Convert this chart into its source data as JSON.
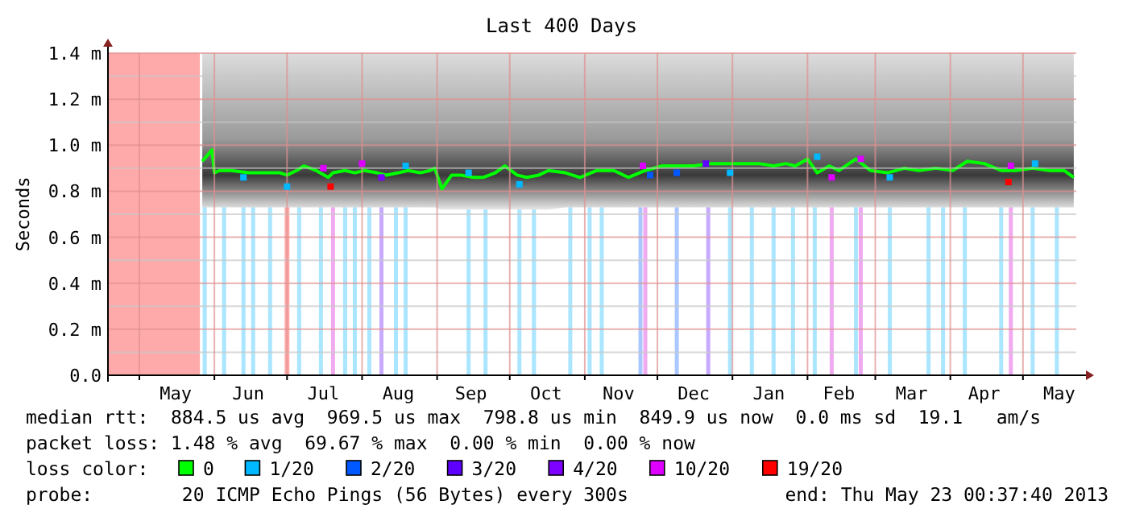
{
  "chart_data": {
    "type": "line",
    "title": "Last 400 Days",
    "ylabel": "Seconds",
    "legend_title": "loss color:",
    "legend": "bottom",
    "grid": true,
    "xlim": [
      "2012-04-18T00:37",
      "2013-05-23T00:37"
    ],
    "xticks": [
      {
        "value": "2012-05-01",
        "label": null
      },
      {
        "value": "2012-05-16",
        "label": "May"
      },
      {
        "value": "2012-06-01",
        "label": null
      },
      {
        "value": "2012-06-15",
        "label": "Jun"
      },
      {
        "value": "2012-07-01",
        "label": null
      },
      {
        "value": "2012-07-16",
        "label": "Jul"
      },
      {
        "value": "2012-08-01",
        "label": null
      },
      {
        "value": "2012-08-16",
        "label": "Aug"
      },
      {
        "value": "2012-09-01",
        "label": null
      },
      {
        "value": "2012-09-15",
        "label": "Sep"
      },
      {
        "value": "2012-10-01",
        "label": null
      },
      {
        "value": "2012-10-16",
        "label": "Oct"
      },
      {
        "value": "2012-11-01",
        "label": null
      },
      {
        "value": "2012-11-15",
        "label": "Nov"
      },
      {
        "value": "2012-12-01",
        "label": null
      },
      {
        "value": "2012-12-16",
        "label": "Dec"
      },
      {
        "value": "2013-01-01",
        "label": null
      },
      {
        "value": "2013-01-16",
        "label": "Jan"
      },
      {
        "value": "2013-02-01",
        "label": null
      },
      {
        "value": "2013-02-14",
        "label": "Feb"
      },
      {
        "value": "2013-03-01",
        "label": null
      },
      {
        "value": "2013-03-16",
        "label": "Mar"
      },
      {
        "value": "2013-04-01",
        "label": null
      },
      {
        "value": "2013-04-15",
        "label": "Apr"
      },
      {
        "value": "2013-05-01",
        "label": null
      },
      {
        "value": "2013-05-16",
        "label": "May"
      }
    ],
    "ylim": [
      0,
      1.4
    ],
    "yticks": [
      {
        "value": 0,
        "label": "0.0"
      },
      {
        "value": 0.1,
        "label": null
      },
      {
        "value": 0.2,
        "label": "0.2 m"
      },
      {
        "value": 0.3,
        "label": null
      },
      {
        "value": 0.4,
        "label": "0.4 m"
      },
      {
        "value": 0.5,
        "label": null
      },
      {
        "value": 0.6,
        "label": "0.6 m"
      },
      {
        "value": 0.7,
        "label": null
      },
      {
        "value": 0.8,
        "label": "0.8 m"
      },
      {
        "value": 0.9,
        "label": null
      },
      {
        "value": 1.0,
        "label": "1.0 m"
      },
      {
        "value": 1.1,
        "label": null
      },
      {
        "value": 1.2,
        "label": "1.2 m"
      },
      {
        "value": 1.3,
        "label": null
      },
      {
        "value": 1.4,
        "label": "1.4 m"
      }
    ],
    "bands": [
      {
        "axis": "x",
        "from": "2012-04-18T00:37",
        "to": "2012-05-26",
        "color": "#ffaaaa"
      },
      {
        "axis": "x",
        "from": "2012-06-30",
        "to": "2012-07-02",
        "color": "#ffaaaa"
      }
    ],
    "ref_lines": [
      {
        "axis": "x",
        "value": "2012-05-28",
        "color": "#aae6ff"
      },
      {
        "axis": "x",
        "value": "2012-06-05",
        "color": "#aae6ff"
      },
      {
        "axis": "x",
        "value": "2012-06-13",
        "color": "#aae6ff"
      },
      {
        "axis": "x",
        "value": "2012-06-17",
        "color": "#aae6ff"
      },
      {
        "axis": "x",
        "value": "2012-06-24",
        "color": "#aae6ff"
      },
      {
        "axis": "x",
        "value": "2012-07-06",
        "color": "#aae6ff"
      },
      {
        "axis": "x",
        "value": "2012-07-15",
        "color": "#aae6ff"
      },
      {
        "axis": "x",
        "value": "2012-07-20",
        "color": "#f0aaf0"
      },
      {
        "axis": "x",
        "value": "2012-07-25",
        "color": "#aae6ff"
      },
      {
        "axis": "x",
        "value": "2012-07-29",
        "color": "#aae6ff"
      },
      {
        "axis": "x",
        "value": "2012-08-04",
        "color": "#aae6ff"
      },
      {
        "axis": "x",
        "value": "2012-08-09",
        "color": "#c8aaff"
      },
      {
        "axis": "x",
        "value": "2012-08-15",
        "color": "#aae6ff"
      },
      {
        "axis": "x",
        "value": "2012-08-19",
        "color": "#aae6ff"
      },
      {
        "axis": "x",
        "value": "2012-09-14",
        "color": "#aae6ff"
      },
      {
        "axis": "x",
        "value": "2012-09-21",
        "color": "#aae6ff"
      },
      {
        "axis": "x",
        "value": "2012-10-05",
        "color": "#aae6ff"
      },
      {
        "axis": "x",
        "value": "2012-10-11",
        "color": "#aae6ff"
      },
      {
        "axis": "x",
        "value": "2012-10-26",
        "color": "#aae6ff"
      },
      {
        "axis": "x",
        "value": "2012-11-03",
        "color": "#aae6ff"
      },
      {
        "axis": "x",
        "value": "2012-11-08",
        "color": "#aae6ff"
      },
      {
        "axis": "x",
        "value": "2012-11-24",
        "color": "#aac8ff"
      },
      {
        "axis": "x",
        "value": "2012-11-26",
        "color": "#f0aaf0"
      },
      {
        "axis": "x",
        "value": "2012-12-09",
        "color": "#aac8ff"
      },
      {
        "axis": "x",
        "value": "2012-12-22",
        "color": "#c8aaff"
      },
      {
        "axis": "x",
        "value": "2012-12-31",
        "color": "#aae6ff"
      },
      {
        "axis": "x",
        "value": "2013-01-09",
        "color": "#aae6ff"
      },
      {
        "axis": "x",
        "value": "2013-01-18",
        "color": "#aae6ff"
      },
      {
        "axis": "x",
        "value": "2013-01-26",
        "color": "#aae6ff"
      },
      {
        "axis": "x",
        "value": "2013-02-04",
        "color": "#aae6ff"
      },
      {
        "axis": "x",
        "value": "2013-02-11",
        "color": "#f0aaf0"
      },
      {
        "axis": "x",
        "value": "2013-02-21",
        "color": "#aae6ff"
      },
      {
        "axis": "x",
        "value": "2013-02-23",
        "color": "#f0aaf0"
      },
      {
        "axis": "x",
        "value": "2013-03-07",
        "color": "#aae6ff"
      },
      {
        "axis": "x",
        "value": "2013-03-23",
        "color": "#aae6ff"
      },
      {
        "axis": "x",
        "value": "2013-03-29",
        "color": "#aae6ff"
      },
      {
        "axis": "x",
        "value": "2013-04-07",
        "color": "#aae6ff"
      },
      {
        "axis": "x",
        "value": "2013-04-22",
        "color": "#aae6ff"
      },
      {
        "axis": "x",
        "value": "2013-04-26",
        "color": "#f0aaf0"
      },
      {
        "axis": "x",
        "value": "2013-05-05",
        "color": "#aae6ff"
      },
      {
        "axis": "x",
        "value": "2013-05-15",
        "color": "#aae6ff"
      }
    ],
    "series": [
      {
        "name": "0",
        "color": "#00ff00",
        "x": [
          "2012-05-27",
          "2012-05-31",
          "2012-06-01",
          "2012-06-03",
          "2012-06-08",
          "2012-06-15",
          "2012-06-21",
          "2012-06-28",
          "2012-07-01",
          "2012-07-05",
          "2012-07-08",
          "2012-07-13",
          "2012-07-18",
          "2012-07-20",
          "2012-07-25",
          "2012-07-29",
          "2012-08-02",
          "2012-08-07",
          "2012-08-11",
          "2012-08-16",
          "2012-08-20",
          "2012-08-25",
          "2012-08-29",
          "2012-08-31",
          "2012-09-03",
          "2012-09-07",
          "2012-09-11",
          "2012-09-16",
          "2012-09-20",
          "2012-09-25",
          "2012-09-29",
          "2012-10-04",
          "2012-10-08",
          "2012-10-13",
          "2012-10-17",
          "2012-10-24",
          "2012-10-30",
          "2012-11-06",
          "2012-11-13",
          "2012-11-19",
          "2012-11-26",
          "2012-12-03",
          "2012-12-09",
          "2012-12-16",
          "2012-12-23",
          "2012-12-29",
          "2013-01-05",
          "2013-01-12",
          "2013-01-18",
          "2013-01-23",
          "2013-01-27",
          "2013-02-01",
          "2013-02-05",
          "2013-02-10",
          "2013-02-14",
          "2013-02-21",
          "2013-02-27",
          "2013-03-06",
          "2013-03-13",
          "2013-03-19",
          "2013-03-26",
          "2013-04-02",
          "2013-04-08",
          "2013-04-15",
          "2013-04-22",
          "2013-04-28",
          "2013-05-05",
          "2013-05-12",
          "2013-05-18",
          "2013-05-22"
        ],
        "values": [
          0.93,
          0.98,
          0.88,
          0.89,
          0.89,
          0.88,
          0.88,
          0.88,
          0.87,
          0.89,
          0.91,
          0.89,
          0.86,
          0.88,
          0.89,
          0.88,
          0.89,
          0.88,
          0.87,
          0.88,
          0.89,
          0.88,
          0.89,
          0.9,
          0.81,
          0.87,
          0.87,
          0.86,
          0.86,
          0.88,
          0.91,
          0.87,
          0.86,
          0.87,
          0.89,
          0.88,
          0.86,
          0.89,
          0.89,
          0.86,
          0.89,
          0.91,
          0.91,
          0.91,
          0.92,
          0.92,
          0.92,
          0.92,
          0.91,
          0.92,
          0.91,
          0.94,
          0.88,
          0.91,
          0.89,
          0.94,
          0.89,
          0.88,
          0.9,
          0.89,
          0.9,
          0.89,
          0.93,
          0.92,
          0.89,
          0.89,
          0.9,
          0.89,
          0.89,
          0.86
        ],
        "lower": [
          0.73,
          0.73,
          0.73,
          0.73,
          0.73,
          0.73,
          0.73,
          0.73,
          0.73,
          0.73,
          0.73,
          0.73,
          0.73,
          0.73,
          0.73,
          0.73,
          0.73,
          0.73,
          0.73,
          0.73,
          0.73,
          0.73,
          0.73,
          0.73,
          0.72,
          0.72,
          0.72,
          0.72,
          0.72,
          0.72,
          0.72,
          0.72,
          0.72,
          0.72,
          0.72,
          0.73,
          0.73,
          0.73,
          0.73,
          0.73,
          0.73,
          0.73,
          0.73,
          0.73,
          0.73,
          0.73,
          0.73,
          0.73,
          0.73,
          0.73,
          0.73,
          0.73,
          0.73,
          0.73,
          0.73,
          0.73,
          0.73,
          0.73,
          0.73,
          0.73,
          0.73,
          0.73,
          0.73,
          0.73,
          0.73,
          0.73,
          0.73,
          0.73,
          0.73,
          0.73
        ],
        "upper": [
          1.4,
          1.4,
          1.4,
          1.4,
          1.4,
          1.4,
          1.4,
          1.4,
          1.4,
          1.4,
          1.4,
          1.4,
          1.4,
          1.4,
          1.4,
          1.4,
          1.4,
          1.4,
          1.4,
          1.4,
          1.4,
          1.4,
          1.4,
          1.4,
          1.4,
          1.4,
          1.4,
          1.4,
          1.4,
          1.4,
          1.4,
          1.4,
          1.4,
          1.4,
          1.4,
          1.4,
          1.4,
          1.4,
          1.4,
          1.4,
          1.4,
          1.4,
          1.4,
          1.4,
          1.4,
          1.4,
          1.4,
          1.4,
          1.4,
          1.4,
          1.4,
          1.4,
          1.4,
          1.4,
          1.4,
          1.4,
          1.4,
          1.4,
          1.4,
          1.4,
          1.4,
          1.4,
          1.4,
          1.4,
          1.4,
          1.4,
          1.4,
          1.4,
          1.4,
          1.4
        ]
      },
      {
        "name": "1/20",
        "type": "scatter",
        "marker": "square",
        "color": "#00b8ff",
        "x": [
          "2012-06-13",
          "2012-07-01",
          "2012-08-19",
          "2012-09-14",
          "2012-10-05",
          "2012-12-31",
          "2013-02-05",
          "2013-03-07",
          "2013-05-06"
        ],
        "values": [
          0.86,
          0.82,
          0.91,
          0.88,
          0.83,
          0.88,
          0.95,
          0.86,
          0.92
        ]
      },
      {
        "name": "2/20",
        "type": "scatter",
        "marker": "square",
        "color": "#0059ff",
        "x": [
          "2012-11-28",
          "2012-12-09"
        ],
        "values": [
          0.87,
          0.88
        ]
      },
      {
        "name": "3/20",
        "type": "scatter",
        "marker": "square",
        "color": "#5e00ff",
        "x": [
          "2012-12-21"
        ],
        "values": [
          0.92
        ]
      },
      {
        "name": "4/20",
        "type": "scatter",
        "marker": "square",
        "color": "#7e00ff",
        "x": [
          "2012-08-09"
        ],
        "values": [
          0.86
        ]
      },
      {
        "name": "10/20",
        "type": "scatter",
        "marker": "square",
        "color": "#dd00ff",
        "x": [
          "2012-07-16",
          "2012-08-01",
          "2012-11-25",
          "2013-02-11",
          "2013-02-23",
          "2013-04-26"
        ],
        "values": [
          0.9,
          0.92,
          0.91,
          0.86,
          0.94,
          0.91
        ]
      },
      {
        "name": "19/20",
        "type": "scatter",
        "marker": "square",
        "color": "#ff0000",
        "x": [
          "2012-07-19",
          "2013-04-25"
        ],
        "values": [
          0.82,
          0.84
        ]
      }
    ],
    "annotations": [
      "median rtt:  884.5 us avg  969.5 us max  798.8 us min  849.9 us now  0.0 ms sd  19.1   am/s",
      "packet loss: 1.48 % avg  69.67 % max  0.00 % min  0.00 % now",
      "probe:        20 ICMP Echo Pings (56 Bytes) every 300s",
      "end: Thu May 23 00:37:40 2013"
    ]
  }
}
